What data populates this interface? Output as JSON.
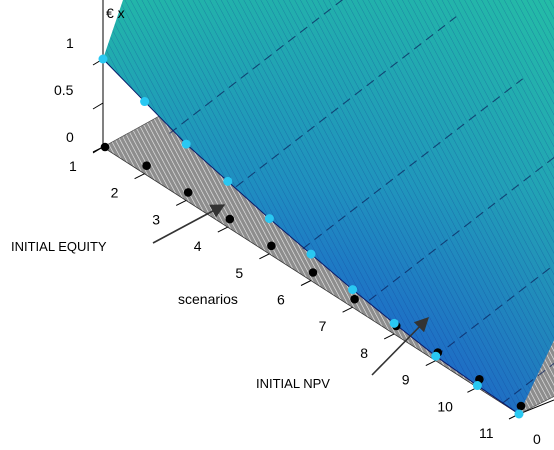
{
  "chart_data": {
    "type": "surface",
    "zlabel": "€ x",
    "zlim": [
      0,
      1
    ],
    "z_ticks": [
      "0",
      "0.5",
      "1"
    ],
    "xlabel": "scenarios",
    "scenario_ticks": [
      "1",
      "2",
      "3",
      "4",
      "5",
      "6",
      "7",
      "8",
      "9",
      "10",
      "11"
    ],
    "third_axis_visible_ticks": [
      "0"
    ],
    "initial_npv_points": [
      {
        "scenario": 1,
        "value": 1.0
      },
      {
        "scenario": 2,
        "value": 0.82
      },
      {
        "scenario": 3,
        "value": 0.64
      },
      {
        "scenario": 4,
        "value": 0.52
      },
      {
        "scenario": 5,
        "value": 0.4
      },
      {
        "scenario": 6,
        "value": 0.3
      },
      {
        "scenario": 7,
        "value": 0.2
      },
      {
        "scenario": 8,
        "value": 0.12
      },
      {
        "scenario": 9,
        "value": 0.05
      },
      {
        "scenario": 10,
        "value": 0.02
      },
      {
        "scenario": 11,
        "value": 0.0
      }
    ],
    "initial_equity_points": [
      {
        "scenario": 1,
        "value": 0
      },
      {
        "scenario": 2,
        "value": 0
      },
      {
        "scenario": 3,
        "value": 0
      },
      {
        "scenario": 4,
        "value": 0
      },
      {
        "scenario": 5,
        "value": 0
      },
      {
        "scenario": 6,
        "value": 0
      },
      {
        "scenario": 7,
        "value": 0
      },
      {
        "scenario": 8,
        "value": 0
      },
      {
        "scenario": 9,
        "value": 0
      },
      {
        "scenario": 10,
        "value": 0
      },
      {
        "scenario": 11,
        "value": 0
      }
    ],
    "annotations": [
      {
        "id": "initial-equity",
        "text": "INITIAL EQUITY"
      },
      {
        "id": "initial-npv",
        "text": "INITIAL NPV"
      }
    ],
    "colors": {
      "surface_high": "#1fb3ac",
      "surface_low": "#1c3ee0",
      "equity_plane": "#8a8a8a",
      "npv_marker": "#29c8f2",
      "equity_marker": "#000000"
    }
  }
}
